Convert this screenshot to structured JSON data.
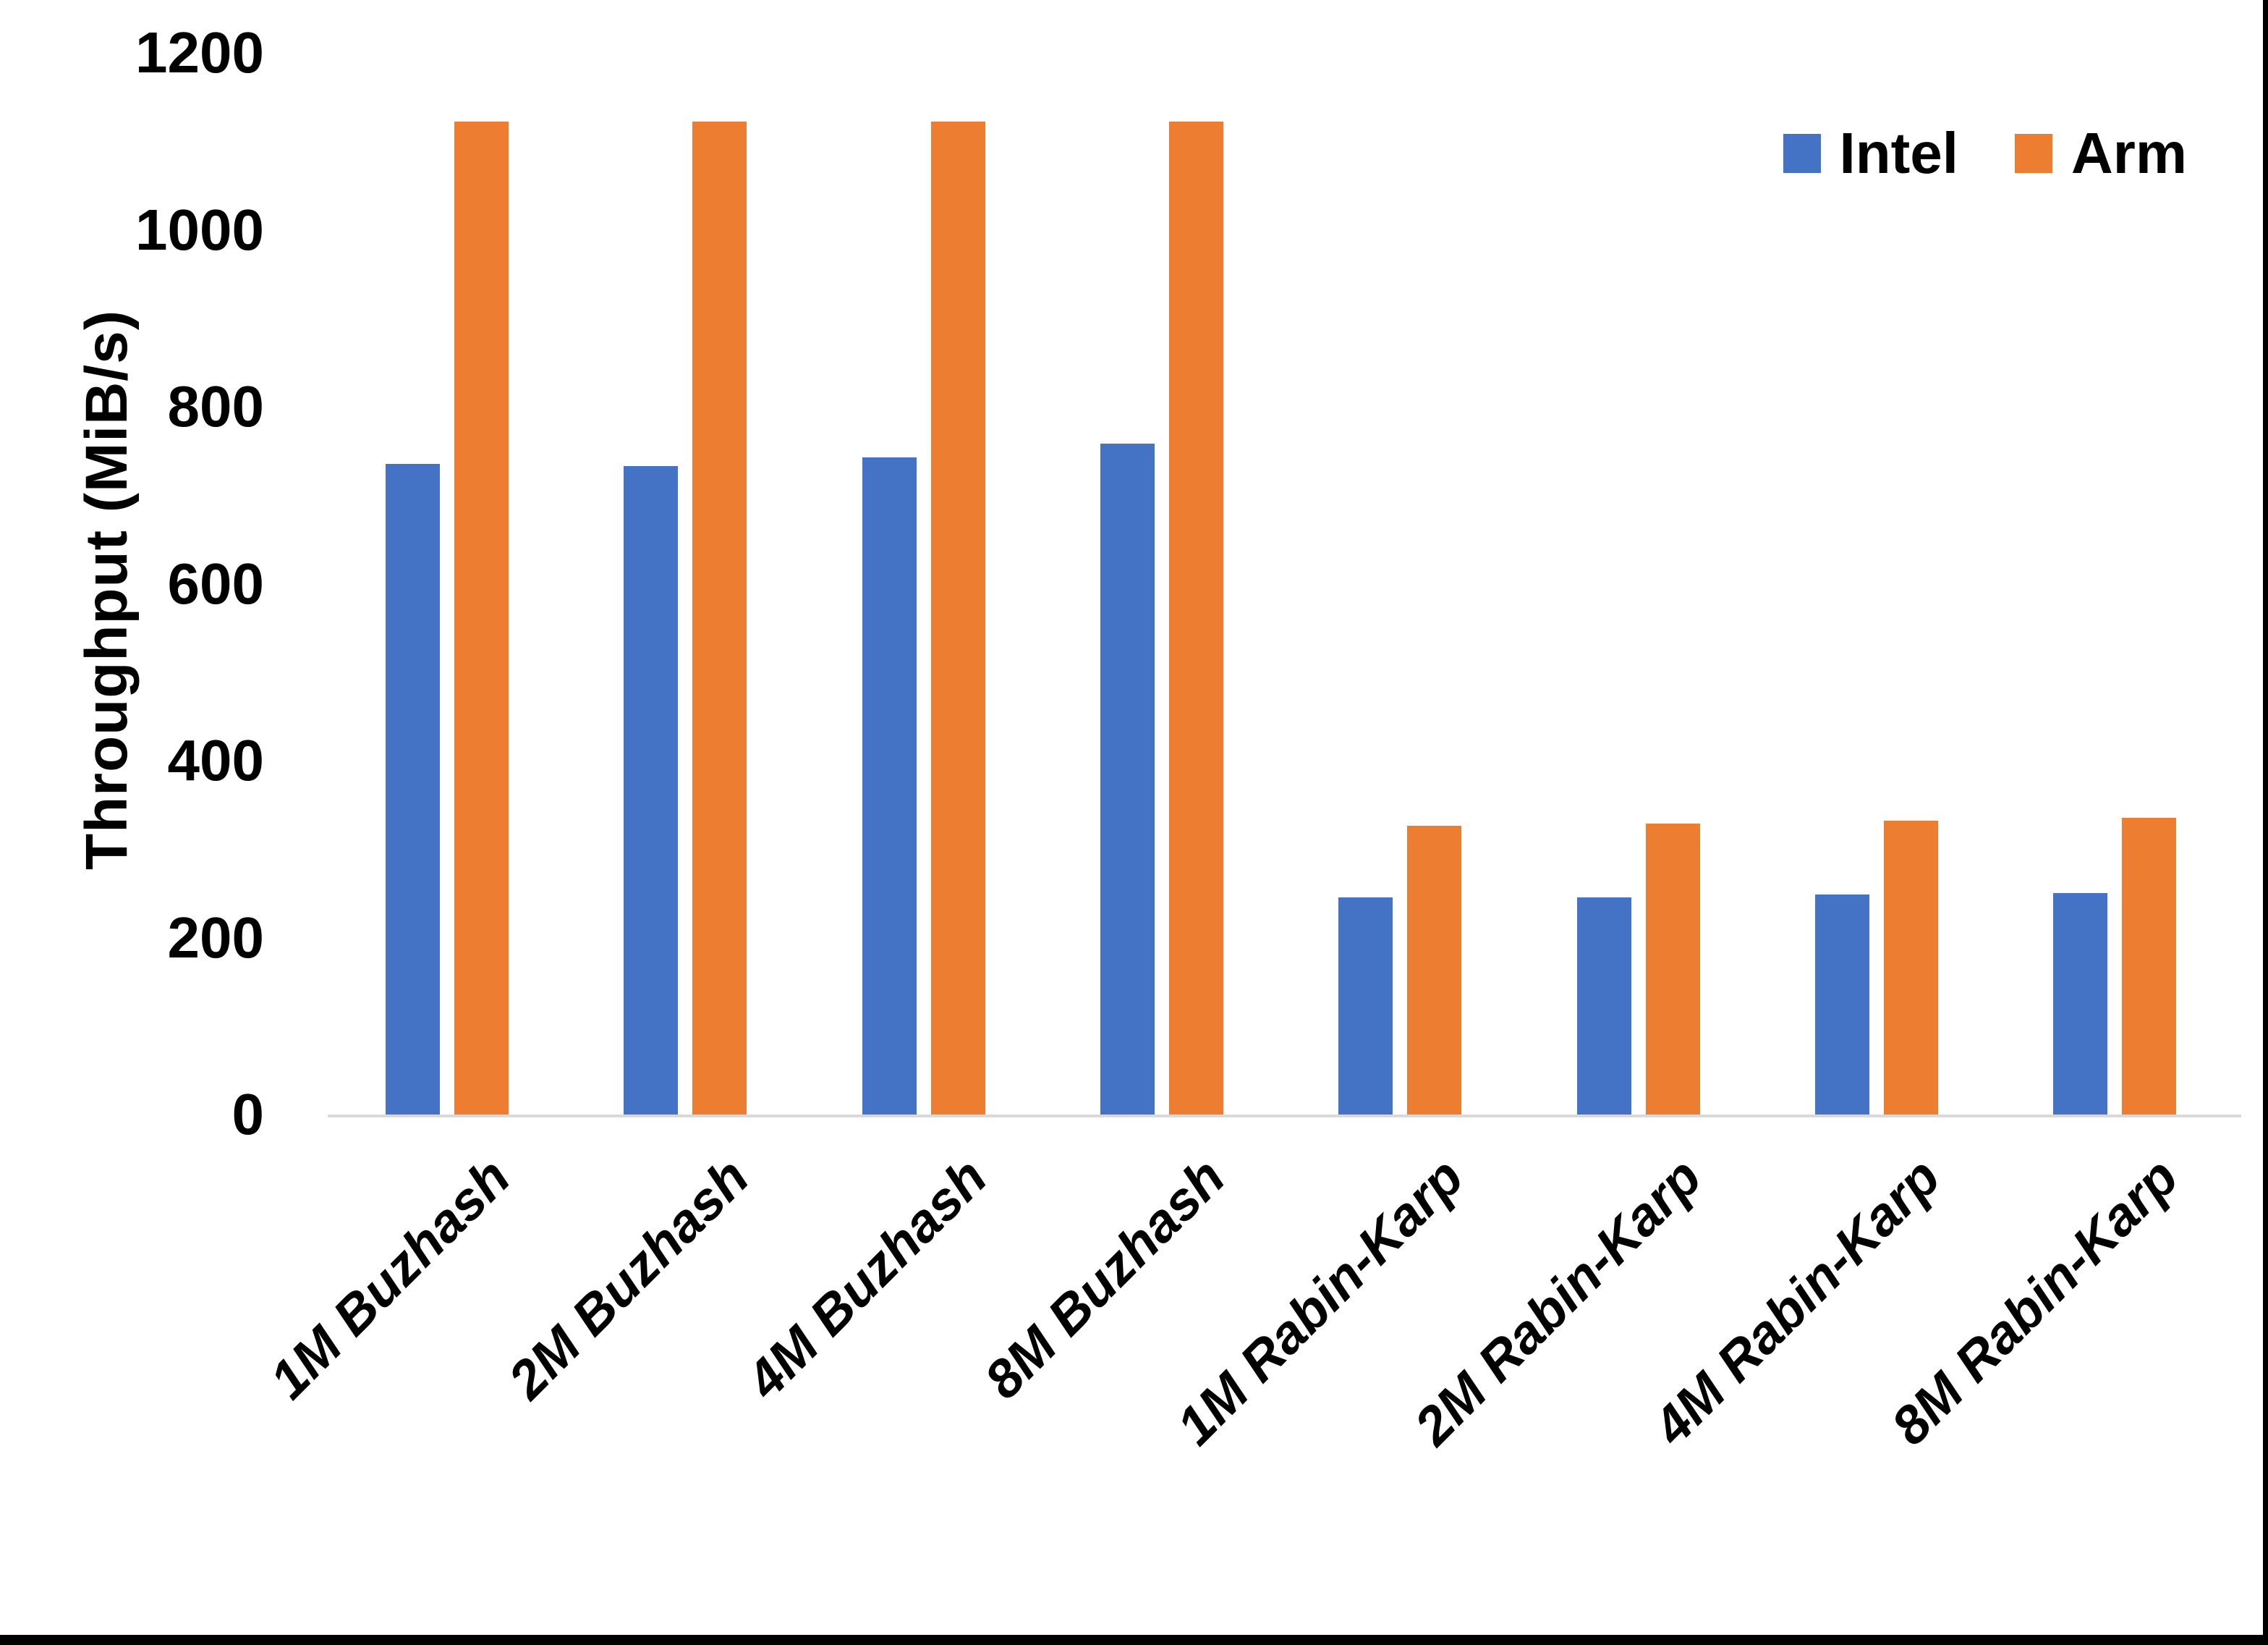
{
  "chart_data": {
    "type": "bar",
    "title": "",
    "xlabel": "",
    "ylabel": "Throughput (MiB/s)",
    "ylim": [
      0,
      1200
    ],
    "yticks": [
      0,
      200,
      400,
      600,
      800,
      1000,
      1200
    ],
    "grid": false,
    "legend_position": "top-right",
    "axis_line_color": "#d9d9d9",
    "background": "#ffffff",
    "categories": [
      "1M Buzhash",
      "2M Buzhash",
      "4M Buzhash",
      "8M Buzhash",
      "1M Rabin-Karp",
      "2M Rabin-Karp",
      "4M Rabin-Karp",
      "8M Rabin-Karp"
    ],
    "series": [
      {
        "name": "Intel",
        "color": "#4472c4",
        "values": [
          735,
          733,
          743,
          758,
          245,
          245,
          249,
          250
        ]
      },
      {
        "name": "Arm",
        "color": "#ed7d31",
        "values": [
          1122,
          1122,
          1122,
          1122,
          326,
          329,
          332,
          335
        ]
      }
    ]
  },
  "frame": {
    "border_color": "#000000"
  }
}
